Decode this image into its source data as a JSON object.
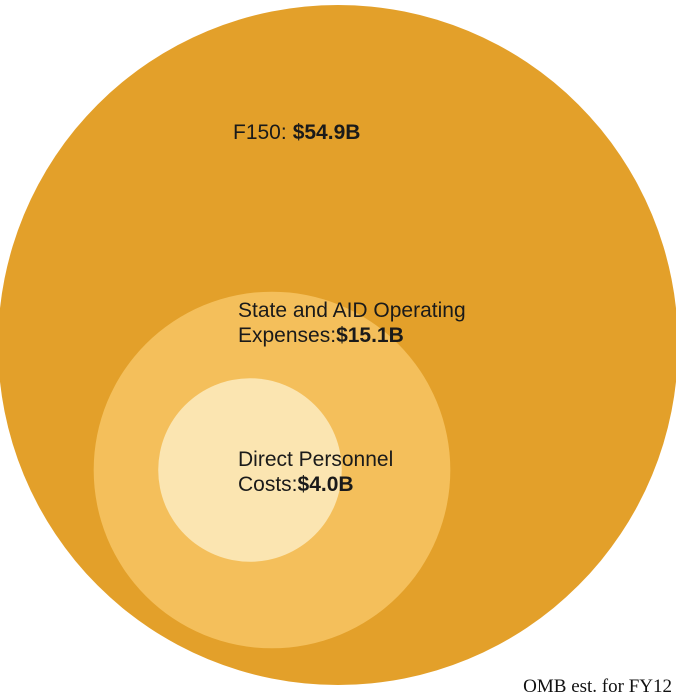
{
  "chart_data": {
    "type": "nested-circles",
    "names": [
      "F150:",
      "State and AID Operating Expenses:",
      "Direct Personnel Costs:"
    ],
    "values": [
      54.9,
      15.1,
      4.0
    ],
    "value_labels": [
      "$54.9B",
      "$15.1B",
      "$4.0B"
    ],
    "colors": [
      "#e3a02a",
      "#f4bf5b",
      "#fbe5b1"
    ],
    "note": "OMB est. for FY12"
  }
}
